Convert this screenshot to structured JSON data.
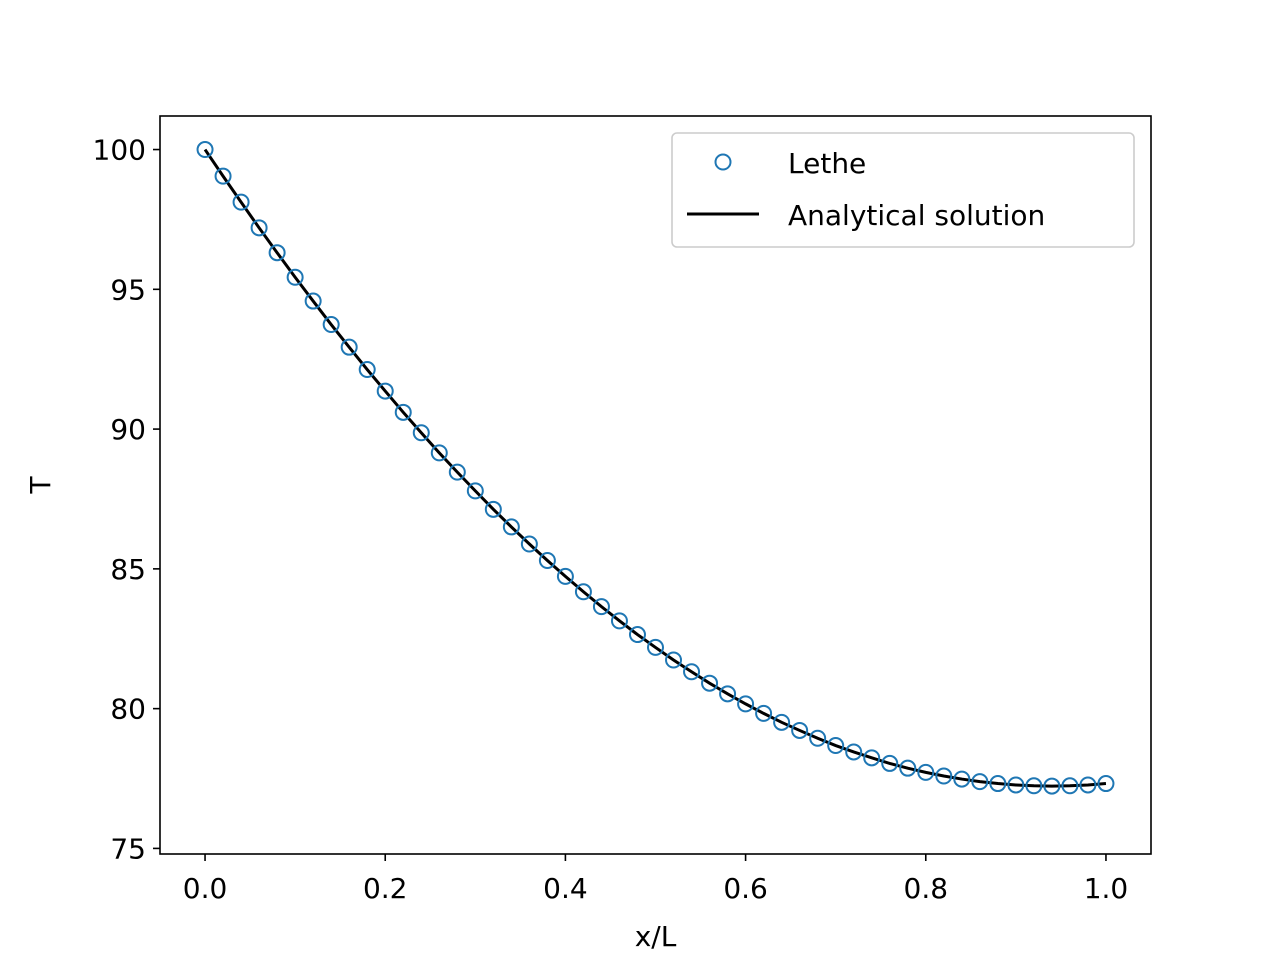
{
  "chart_data": {
    "type": "line",
    "xlabel": "x/L",
    "ylabel": "T",
    "xlim": [
      -0.05,
      1.05
    ],
    "ylim": [
      74.8,
      101.2
    ],
    "xticks": [
      0.0,
      0.2,
      0.4,
      0.6,
      0.8,
      1.0
    ],
    "xtick_labels": [
      "0.0",
      "0.2",
      "0.4",
      "0.6",
      "0.8",
      "1.0"
    ],
    "yticks": [
      75,
      80,
      85,
      90,
      95,
      100
    ],
    "ytick_labels": [
      "75",
      "80",
      "85",
      "90",
      "95",
      "100"
    ],
    "grid": false,
    "legend_position": "top-right",
    "series": [
      {
        "name": "Lethe",
        "style": "markers",
        "marker": "open-circle",
        "color": "#1f77b4",
        "x": [
          0.0,
          0.02,
          0.04,
          0.06,
          0.08,
          0.1,
          0.12,
          0.14,
          0.16,
          0.18,
          0.2,
          0.22,
          0.24,
          0.26,
          0.28,
          0.3,
          0.32,
          0.34,
          0.36,
          0.38,
          0.4,
          0.42,
          0.44,
          0.46,
          0.48,
          0.5,
          0.52,
          0.54,
          0.56,
          0.58,
          0.6,
          0.62,
          0.64,
          0.66,
          0.68,
          0.7,
          0.72,
          0.74,
          0.76,
          0.78,
          0.8,
          0.82,
          0.84,
          0.86,
          0.88,
          0.9,
          0.92,
          0.94,
          0.96,
          0.98,
          1.0
        ],
        "y": [
          100.0,
          99.05,
          98.12,
          97.2,
          96.31,
          95.43,
          94.58,
          93.74,
          92.93,
          92.13,
          91.36,
          90.6,
          89.87,
          89.15,
          88.46,
          87.79,
          87.13,
          86.5,
          85.89,
          85.3,
          84.73,
          84.18,
          83.65,
          83.14,
          82.65,
          82.19,
          81.74,
          81.32,
          80.91,
          80.53,
          80.17,
          79.83,
          79.51,
          79.22,
          78.94,
          78.68,
          78.45,
          78.24,
          78.04,
          77.87,
          77.72,
          77.59,
          77.48,
          77.39,
          77.32,
          77.27,
          77.24,
          77.23,
          77.24,
          77.27,
          77.32
        ]
      },
      {
        "name": "Analytical solution",
        "style": "line",
        "color": "#000000"
      }
    ]
  }
}
